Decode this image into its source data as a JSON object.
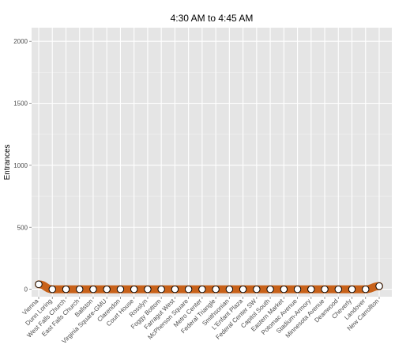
{
  "chart_data": {
    "type": "line",
    "title": "4:30 AM to 4:45 AM",
    "xlabel": "",
    "ylabel": "Entrances",
    "ylim": [
      -60,
      2110
    ],
    "yticks": [
      0,
      500,
      1000,
      1500,
      2000
    ],
    "grid": true,
    "legend": "none",
    "colors": {
      "panel": "#e5e5e5",
      "grid_major": "#ffffff",
      "grid_minor": "#f2f2f2",
      "ribbon": "#c8621a",
      "point_fill": "#ffffff",
      "point_stroke": "#000000"
    },
    "categories": [
      "Vienna",
      "Dunn Loring",
      "West Falls Church",
      "East Falls Church",
      "Ballston",
      "Virginia Square-GMU",
      "Clarendon",
      "Court House",
      "Rosslyn",
      "Foggy Bottom",
      "Farragut West",
      "McPherson Square",
      "Metro Center",
      "Federal Triangle",
      "Smithsonian",
      "L'Enfant Plaza",
      "Federal Center SW",
      "Capitol South",
      "Eastern Market",
      "Potomac Avenue",
      "Stadium-Armory",
      "Minnesota Avenue",
      "Deanwood",
      "Cheverly",
      "Landover",
      "New Carrollton"
    ],
    "values": [
      40,
      0,
      0,
      0,
      0,
      0,
      0,
      0,
      0,
      0,
      0,
      0,
      0,
      0,
      0,
      0,
      0,
      0,
      0,
      0,
      0,
      0,
      0,
      0,
      0,
      25
    ]
  }
}
